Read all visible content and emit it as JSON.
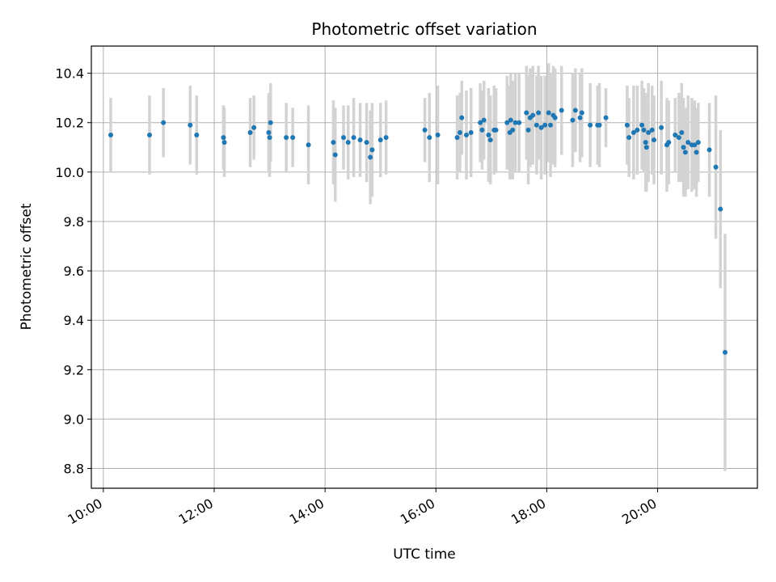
{
  "chart_data": {
    "type": "scatter",
    "title": "Photometric offset variation",
    "xlabel": "UTC time",
    "ylabel": "Photometric offset",
    "x_unit": "UTC hours",
    "xlim": [
      "09:47",
      "21:48"
    ],
    "ylim": [
      8.72,
      10.51
    ],
    "x_ticks": [
      "10:00",
      "12:00",
      "14:00",
      "16:00",
      "18:00",
      "20:00"
    ],
    "y_ticks": [
      "8.8",
      "9.0",
      "9.2",
      "9.4",
      "9.6",
      "9.8",
      "10.0",
      "10.2",
      "10.4"
    ],
    "grid": true,
    "colors": {
      "marker": "#1f77b4",
      "errorbar": "#d3d3d3",
      "grid": "#b0b0b0"
    },
    "points": [
      [
        "10:08",
        10.15,
        0.15
      ],
      [
        "10:50",
        10.15,
        0.16
      ],
      [
        "11:05",
        10.2,
        0.14
      ],
      [
        "11:34",
        10.19,
        0.16
      ],
      [
        "11:41",
        10.15,
        0.16
      ],
      [
        "12:10",
        10.14,
        0.13
      ],
      [
        "12:11",
        10.12,
        0.14
      ],
      [
        "12:39",
        10.16,
        0.14
      ],
      [
        "12:43",
        10.18,
        0.13
      ],
      [
        "12:59",
        10.16,
        0.16
      ],
      [
        "13:00",
        10.14,
        0.16
      ],
      [
        "13:01",
        10.2,
        0.16
      ],
      [
        "13:18",
        10.14,
        0.14
      ],
      [
        "13:25",
        10.14,
        0.12
      ],
      [
        "13:42",
        10.11,
        0.16
      ],
      [
        "14:09",
        10.12,
        0.17
      ],
      [
        "14:11",
        10.07,
        0.19
      ],
      [
        "14:20",
        10.14,
        0.13
      ],
      [
        "14:25",
        10.12,
        0.15
      ],
      [
        "14:31",
        10.14,
        0.16
      ],
      [
        "14:38",
        10.13,
        0.15
      ],
      [
        "14:45",
        10.12,
        0.16
      ],
      [
        "14:49",
        10.06,
        0.19
      ],
      [
        "14:51",
        10.09,
        0.19
      ],
      [
        "15:00",
        10.13,
        0.15
      ],
      [
        "15:06",
        10.14,
        0.15
      ],
      [
        "15:48",
        10.17,
        0.13
      ],
      [
        "15:53",
        10.14,
        0.18
      ],
      [
        "16:02",
        10.15,
        0.2
      ],
      [
        "16:23",
        10.14,
        0.17
      ],
      [
        "16:26",
        10.16,
        0.16
      ],
      [
        "16:28",
        10.22,
        0.15
      ],
      [
        "16:33",
        10.15,
        0.18
      ],
      [
        "16:38",
        10.16,
        0.18
      ],
      [
        "16:48",
        10.2,
        0.16
      ],
      [
        "16:50",
        10.17,
        0.16
      ],
      [
        "16:52",
        10.21,
        0.16
      ],
      [
        "16:57",
        10.15,
        0.19
      ],
      [
        "16:59",
        10.13,
        0.18
      ],
      [
        "17:03",
        10.17,
        0.18
      ],
      [
        "17:05",
        10.17,
        0.17
      ],
      [
        "17:17",
        10.2,
        0.19
      ],
      [
        "17:20",
        10.16,
        0.19
      ],
      [
        "17:21",
        10.21,
        0.19
      ],
      [
        "17:23",
        10.17,
        0.2
      ],
      [
        "17:26",
        10.2,
        0.2
      ],
      [
        "17:30",
        10.2,
        0.2
      ],
      [
        "17:38",
        10.24,
        0.19
      ],
      [
        "17:40",
        10.17,
        0.22
      ],
      [
        "17:42",
        10.22,
        0.2
      ],
      [
        "17:45",
        10.23,
        0.2
      ],
      [
        "17:49",
        10.19,
        0.2
      ],
      [
        "17:51",
        10.24,
        0.19
      ],
      [
        "17:54",
        10.18,
        0.21
      ],
      [
        "17:58",
        10.19,
        0.2
      ],
      [
        "18:02",
        10.24,
        0.2
      ],
      [
        "18:04",
        10.19,
        0.21
      ],
      [
        "18:07",
        10.23,
        0.2
      ],
      [
        "18:09",
        10.22,
        0.2
      ],
      [
        "18:16",
        10.25,
        0.18
      ],
      [
        "18:28",
        10.21,
        0.19
      ],
      [
        "18:31",
        10.25,
        0.17
      ],
      [
        "18:36",
        10.22,
        0.18
      ],
      [
        "18:38",
        10.24,
        0.18
      ],
      [
        "18:47",
        10.19,
        0.17
      ],
      [
        "18:55",
        10.19,
        0.16
      ],
      [
        "18:57",
        10.19,
        0.17
      ],
      [
        "19:04",
        10.22,
        0.12
      ],
      [
        "19:27",
        10.19,
        0.16
      ],
      [
        "19:29",
        10.14,
        0.16
      ],
      [
        "19:34",
        10.16,
        0.19
      ],
      [
        "19:38",
        10.17,
        0.18
      ],
      [
        "19:43",
        10.19,
        0.18
      ],
      [
        "19:45",
        10.17,
        0.17
      ],
      [
        "19:47",
        10.12,
        0.2
      ],
      [
        "19:48",
        10.1,
        0.18
      ],
      [
        "19:50",
        10.16,
        0.2
      ],
      [
        "19:54",
        10.17,
        0.18
      ],
      [
        "19:56",
        10.13,
        0.18
      ],
      [
        "20:04",
        10.18,
        0.19
      ],
      [
        "20:10",
        10.11,
        0.19
      ],
      [
        "20:12",
        10.12,
        0.17
      ],
      [
        "20:19",
        10.15,
        0.15
      ],
      [
        "20:23",
        10.14,
        0.18
      ],
      [
        "20:26",
        10.16,
        0.2
      ],
      [
        "20:28",
        10.1,
        0.2
      ],
      [
        "20:30",
        10.08,
        0.18
      ],
      [
        "20:33",
        10.12,
        0.19
      ],
      [
        "20:37",
        10.11,
        0.19
      ],
      [
        "20:40",
        10.11,
        0.18
      ],
      [
        "20:42",
        10.08,
        0.18
      ],
      [
        "20:44",
        10.12,
        0.16
      ],
      [
        "20:56",
        10.09,
        0.19
      ],
      [
        "21:03",
        10.02,
        0.29
      ],
      [
        "21:08",
        9.85,
        0.32
      ],
      [
        "21:13",
        9.27,
        0.48
      ]
    ]
  }
}
